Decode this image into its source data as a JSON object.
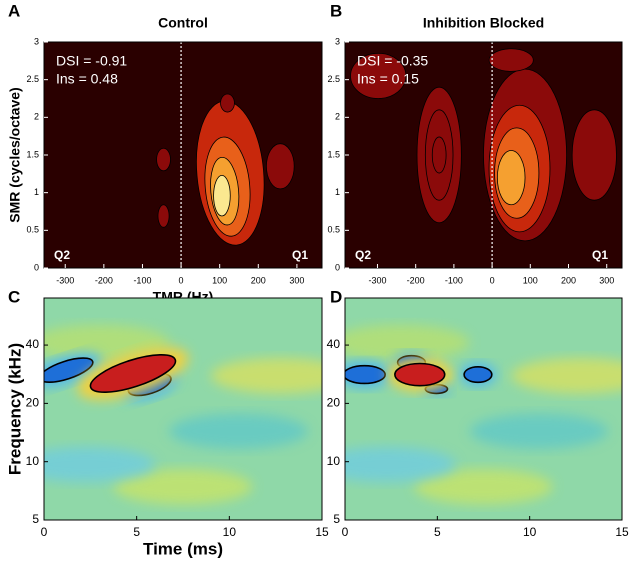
{
  "chart_data": [
    {
      "type": "contour",
      "panel_label": "A",
      "title": "Control",
      "xlabel": "TMR (Hz)",
      "ylabel": "SMR  (cycles/octave)",
      "xlim": [
        -355,
        365
      ],
      "xticks": [
        -300,
        -200,
        -100,
        0,
        100,
        200,
        300
      ],
      "ylim": [
        0,
        3
      ],
      "yticks": [
        0,
        0.5,
        1,
        1.5,
        2,
        2.5,
        3
      ],
      "annotations": [
        "DSI = -0.91",
        "Ins  =  0.48"
      ],
      "quadrants": [
        "Q2",
        "Q1"
      ]
    },
    {
      "type": "contour",
      "panel_label": "B",
      "title": "Inhibition Blocked",
      "xlim": [
        -385,
        340
      ],
      "xticks": [
        -300,
        -200,
        -100,
        0,
        100,
        200,
        300
      ],
      "ylim": [
        0,
        3
      ],
      "yticks": [
        0,
        0.5,
        1,
        1.5,
        2,
        2.5,
        3
      ],
      "annotations": [
        "DSI = -0.35",
        "Ins  =  0.15"
      ],
      "quadrants": [
        "Q2",
        "Q1"
      ]
    },
    {
      "type": "heatmap",
      "panel_label": "C",
      "xlabel": "Time (ms)",
      "ylabel": "Frequency (kHz)",
      "log_y": true,
      "xlim": [
        0,
        15
      ],
      "xticks": [
        0,
        5,
        10,
        15
      ],
      "ylim": [
        5,
        70
      ],
      "yticks": [
        5,
        10,
        20,
        40
      ]
    },
    {
      "type": "heatmap",
      "panel_label": "D",
      "log_y": true,
      "xlim": [
        0,
        15
      ],
      "xticks": [
        0,
        5,
        10,
        15
      ],
      "ylim": [
        5,
        70
      ],
      "yticks": [
        5,
        10,
        20,
        40
      ]
    }
  ]
}
